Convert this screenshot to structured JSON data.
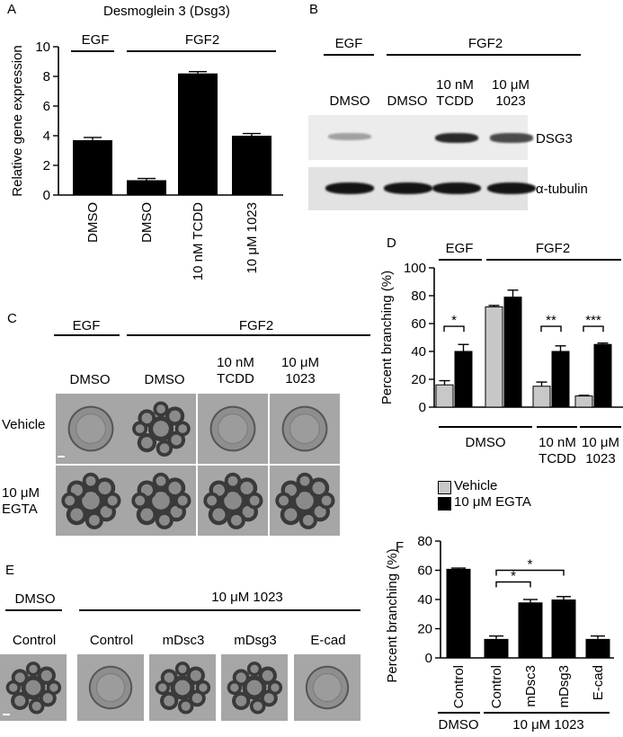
{
  "panels": {
    "A": {
      "letter": "A",
      "title": "Desmoglein 3 (Dsg3)",
      "group_labels": [
        "EGF",
        "FGF2"
      ]
    },
    "B": {
      "letter": "B",
      "group_labels": [
        "EGF",
        "FGF2"
      ],
      "lanes": [
        "DMSO",
        "DMSO",
        "10 nM\nTCDD",
        "10 μM\n1023"
      ],
      "bands": [
        "DSG3",
        "α-tubulin"
      ],
      "dsg3_intensity": [
        0.35,
        0.0,
        0.9,
        0.75
      ],
      "tubulin_intensity": [
        1.0,
        1.0,
        1.0,
        1.0
      ]
    },
    "C": {
      "letter": "C",
      "group_labels": [
        "EGF",
        "FGF2"
      ],
      "columns": [
        "DMSO",
        "DMSO",
        "10 nM\nTCDD",
        "10 μM\n1023"
      ],
      "rows": [
        "Vehicle",
        "10 μM\nEGTA"
      ]
    },
    "D": {
      "letter": "D",
      "group_labels": [
        "EGF",
        "FGF2"
      ],
      "bottom_labels": [
        "DMSO",
        "10 nM\nTCDD",
        "10 μM\n1023"
      ],
      "legend": [
        "Vehicle",
        "10 μM EGTA"
      ],
      "significance": [
        "*",
        "**",
        "***"
      ]
    },
    "E": {
      "letter": "E",
      "group_labels": [
        "DMSO",
        "10 μM 1023"
      ],
      "columns": [
        "Control",
        "Control",
        "mDsc3",
        "mDsg3",
        "E-cad"
      ]
    },
    "F": {
      "letter": "F",
      "bottom_labels": [
        "DMSO",
        "10 μM 1023"
      ],
      "significance": [
        "*",
        "*"
      ]
    }
  },
  "chart_data": [
    {
      "panel": "A",
      "type": "bar",
      "categories": [
        "DMSO",
        "DMSO",
        "10 nM TCDD",
        "10 μM 1023"
      ],
      "values": [
        3.7,
        1.0,
        8.2,
        4.0
      ],
      "errors": [
        0.18,
        0.12,
        0.12,
        0.15
      ],
      "ylabel": "Relative gene expression",
      "ylim": [
        0,
        10
      ],
      "yticks": [
        0,
        2,
        4,
        6,
        8,
        10
      ],
      "color": "#000000"
    },
    {
      "panel": "D",
      "type": "bar",
      "categories": [
        "EGF DMSO",
        "FGF2 DMSO",
        "10 nM TCDD",
        "10 μM 1023"
      ],
      "series": [
        {
          "name": "Vehicle",
          "values": [
            16,
            72,
            15,
            8
          ],
          "errors": [
            3,
            1,
            3,
            0.5
          ],
          "color": "#c8c8c8"
        },
        {
          "name": "10 μM EGTA",
          "values": [
            40,
            79,
            40,
            45
          ],
          "errors": [
            5,
            5,
            4,
            1
          ],
          "color": "#000000"
        }
      ],
      "ylabel": "Percent branching (%)",
      "ylim": [
        0,
        100
      ],
      "yticks": [
        0,
        20,
        40,
        60,
        80,
        100
      ]
    },
    {
      "panel": "F",
      "type": "bar",
      "categories": [
        "Control",
        "Control",
        "mDsc3",
        "mDsg3",
        "E-cad"
      ],
      "values": [
        61,
        13,
        38,
        40,
        13
      ],
      "errors": [
        0.5,
        2,
        2,
        2,
        2
      ],
      "ylabel": "Percent branching (%)",
      "ylim": [
        0,
        80
      ],
      "yticks": [
        0,
        20,
        40,
        60,
        80
      ],
      "color": "#000000"
    }
  ]
}
